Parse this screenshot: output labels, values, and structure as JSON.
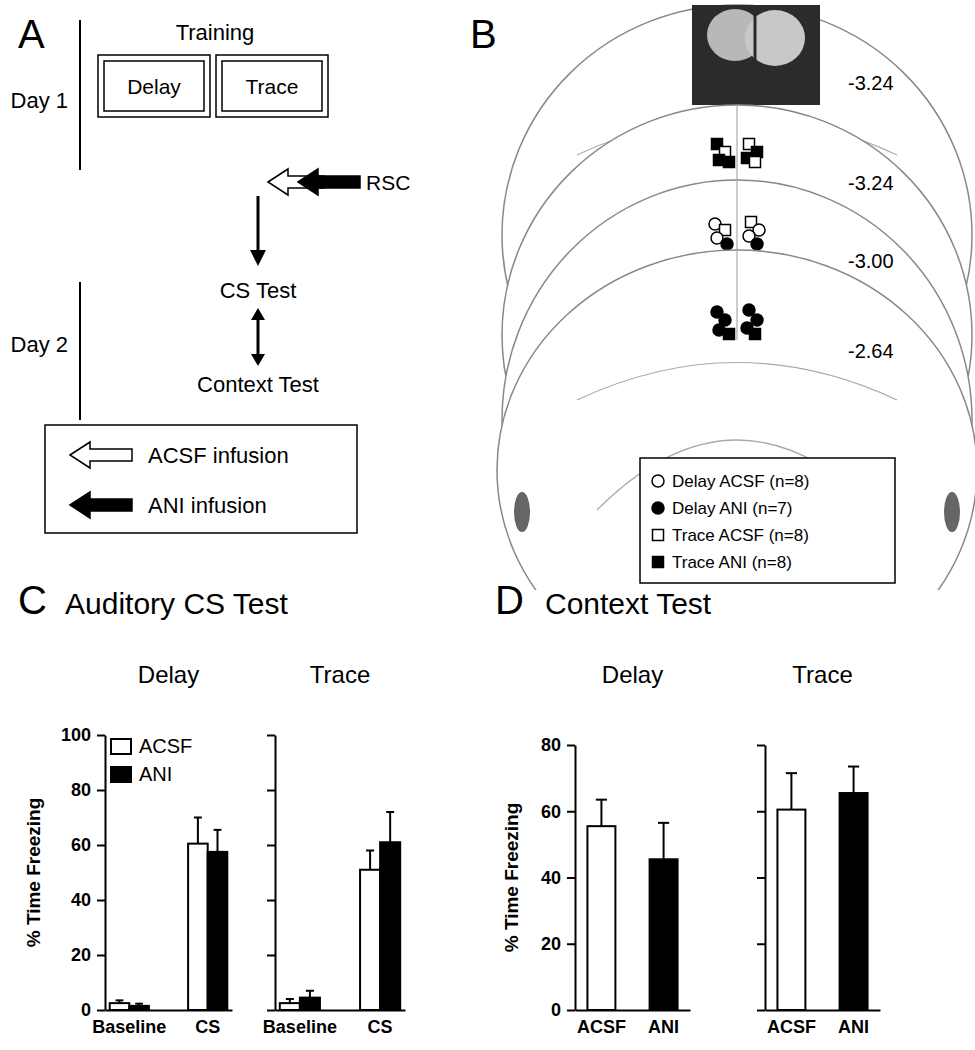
{
  "panel_labels": [
    "A",
    "B",
    "C",
    "D"
  ],
  "diagram": {
    "training": "Training",
    "day1": "Day 1",
    "boxes": [
      "Delay",
      "Trace"
    ],
    "target": "RSC",
    "day2": "Day 2",
    "tests": [
      "CS Test",
      "Context Test"
    ],
    "legend": [
      {
        "label": "ACSF infusion",
        "color": "white"
      },
      {
        "label": "ANI infusion",
        "color": "black"
      }
    ]
  },
  "placement": {
    "sections": [
      "-3.24",
      "-3.24",
      "-3.00",
      "-2.64"
    ],
    "legend": [
      {
        "label": "Delay ACSF (n=8)",
        "marker": "circle",
        "color": "white"
      },
      {
        "label": "Delay ANI (n=7)",
        "marker": "circle",
        "color": "black"
      },
      {
        "label": "Trace ACSF (n=8)",
        "marker": "square",
        "color": "white"
      },
      {
        "label": "Trace ANI (n=8)",
        "marker": "square",
        "color": "black"
      }
    ]
  },
  "figure_titles": [
    "Auditory CS Test",
    "Context Test"
  ],
  "chart_data": [
    {
      "type": "bar",
      "title": "Delay",
      "y_label": "% Time Freezing",
      "categories": [
        "Baseline",
        "CS"
      ],
      "series": [
        {
          "name": "ACSF",
          "color": "white",
          "values": [
            2.5,
            60.5
          ],
          "errors": [
            1,
            9.5
          ]
        },
        {
          "name": "ANI",
          "color": "black",
          "values": [
            1.5,
            57.5
          ],
          "errors": [
            0.8,
            8
          ]
        }
      ],
      "ylim": [
        0,
        100
      ],
      "yticks": [
        0,
        20,
        40,
        60,
        80,
        100
      ],
      "legend": "top-left"
    },
    {
      "type": "bar",
      "title": "Trace",
      "categories": [
        "Baseline",
        "CS"
      ],
      "series": [
        {
          "color": "white",
          "values": [
            2.5,
            51
          ],
          "errors": [
            1.5,
            7
          ]
        },
        {
          "color": "black",
          "values": [
            4.5,
            61
          ],
          "errors": [
            2.5,
            11
          ]
        }
      ],
      "ylim": [
        0,
        100
      ],
      "yticks": [
        0,
        20,
        40,
        60,
        80,
        100
      ],
      "tick_labels": "x"
    },
    {
      "type": "bar",
      "title": "Delay",
      "y_label": "% Time Freezing",
      "categories": [
        "ACSF",
        "ANI"
      ],
      "values": [
        55.5,
        45.5
      ],
      "errors": [
        8,
        11
      ],
      "colors": [
        "white",
        "black"
      ],
      "ylim": [
        0,
        80
      ],
      "yticks": [
        0,
        20,
        40,
        60,
        80
      ]
    },
    {
      "type": "bar",
      "title": "Trace",
      "categories": [
        "ACSF",
        "ANI"
      ],
      "values": [
        60.5,
        65.5
      ],
      "errors": [
        11,
        8
      ],
      "colors": [
        "white",
        "black"
      ],
      "ylim": [
        0,
        80
      ],
      "yticks": [
        0,
        20,
        40,
        60,
        80
      ],
      "tick_labels": "x"
    }
  ]
}
